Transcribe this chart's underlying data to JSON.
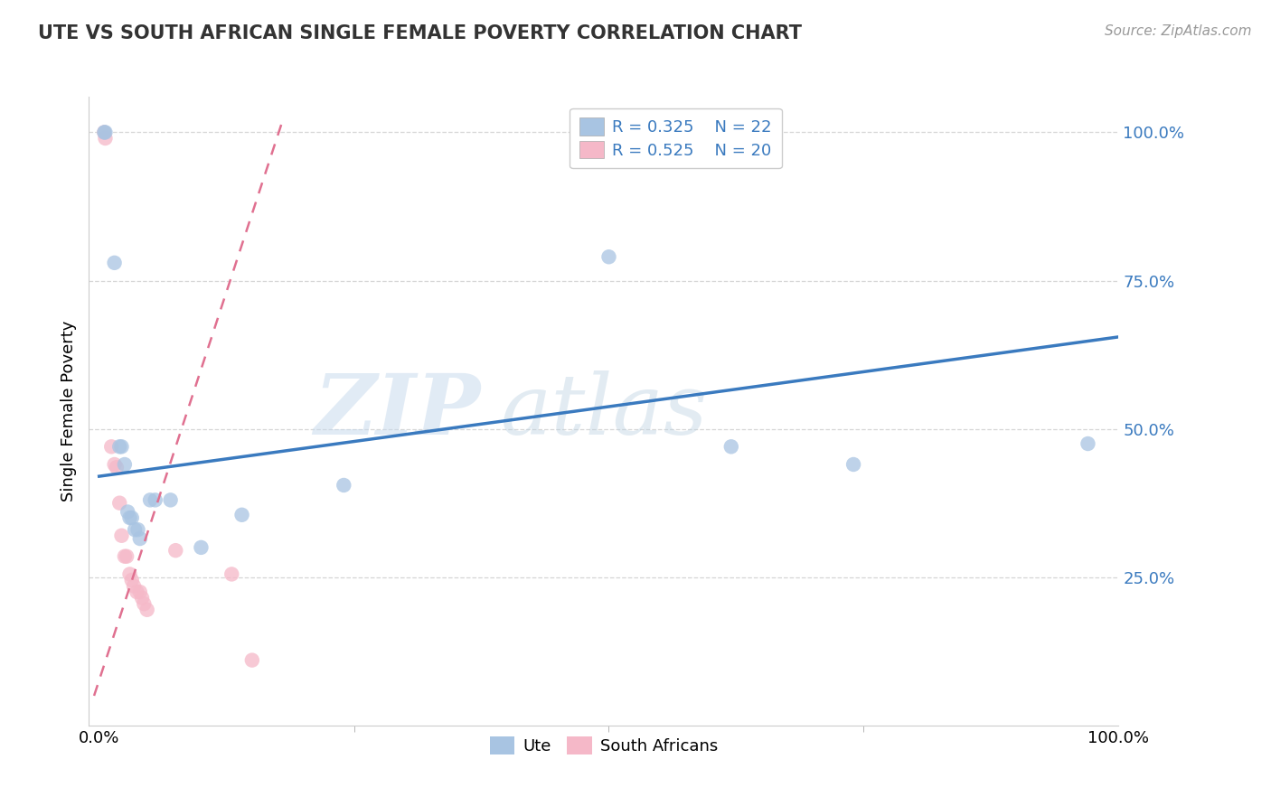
{
  "title": "UTE VS SOUTH AFRICAN SINGLE FEMALE POVERTY CORRELATION CHART",
  "source": "Source: ZipAtlas.com",
  "ylabel": "Single Female Poverty",
  "legend_bottom": [
    "Ute",
    "South Africans"
  ],
  "ute_R": 0.325,
  "ute_N": 22,
  "sa_R": 0.525,
  "sa_N": 20,
  "watermark_zip": "ZIP",
  "watermark_atlas": "atlas",
  "ute_color": "#a8c4e2",
  "sa_color": "#f5b8c8",
  "ute_line_color": "#3a7abf",
  "sa_line_color": "#e07090",
  "grid_color": "#cccccc",
  "background": "#ffffff",
  "ute_points": [
    [
      0.005,
      1.0
    ],
    [
      0.006,
      1.0
    ],
    [
      0.015,
      0.78
    ],
    [
      0.02,
      0.47
    ],
    [
      0.022,
      0.47
    ],
    [
      0.025,
      0.44
    ],
    [
      0.028,
      0.36
    ],
    [
      0.03,
      0.35
    ],
    [
      0.032,
      0.35
    ],
    [
      0.035,
      0.33
    ],
    [
      0.038,
      0.33
    ],
    [
      0.04,
      0.315
    ],
    [
      0.05,
      0.38
    ],
    [
      0.055,
      0.38
    ],
    [
      0.07,
      0.38
    ],
    [
      0.1,
      0.3
    ],
    [
      0.14,
      0.355
    ],
    [
      0.24,
      0.405
    ],
    [
      0.5,
      0.79
    ],
    [
      0.62,
      0.47
    ],
    [
      0.74,
      0.44
    ],
    [
      0.97,
      0.475
    ]
  ],
  "sa_points": [
    [
      0.005,
      1.0
    ],
    [
      0.006,
      0.99
    ],
    [
      0.012,
      0.47
    ],
    [
      0.015,
      0.44
    ],
    [
      0.017,
      0.435
    ],
    [
      0.02,
      0.375
    ],
    [
      0.022,
      0.32
    ],
    [
      0.025,
      0.285
    ],
    [
      0.027,
      0.285
    ],
    [
      0.03,
      0.255
    ],
    [
      0.032,
      0.245
    ],
    [
      0.034,
      0.235
    ],
    [
      0.037,
      0.225
    ],
    [
      0.04,
      0.225
    ],
    [
      0.042,
      0.215
    ],
    [
      0.044,
      0.205
    ],
    [
      0.047,
      0.195
    ],
    [
      0.075,
      0.295
    ],
    [
      0.13,
      0.255
    ],
    [
      0.15,
      0.11
    ]
  ],
  "ute_trend_x": [
    0.0,
    1.0
  ],
  "ute_trend_y": [
    0.42,
    0.655
  ],
  "sa_trend_x": [
    -0.005,
    0.18
  ],
  "sa_trend_y": [
    0.05,
    1.02
  ],
  "ylim": [
    0.0,
    1.06
  ],
  "xlim": [
    -0.01,
    1.0
  ],
  "yticks": [
    0.25,
    0.5,
    0.75,
    1.0
  ],
  "ytick_labels": [
    "25.0%",
    "50.0%",
    "75.0%",
    "100.0%"
  ],
  "xtick_positions": [
    0.0,
    1.0
  ],
  "xtick_labels": [
    "0.0%",
    "100.0%"
  ]
}
